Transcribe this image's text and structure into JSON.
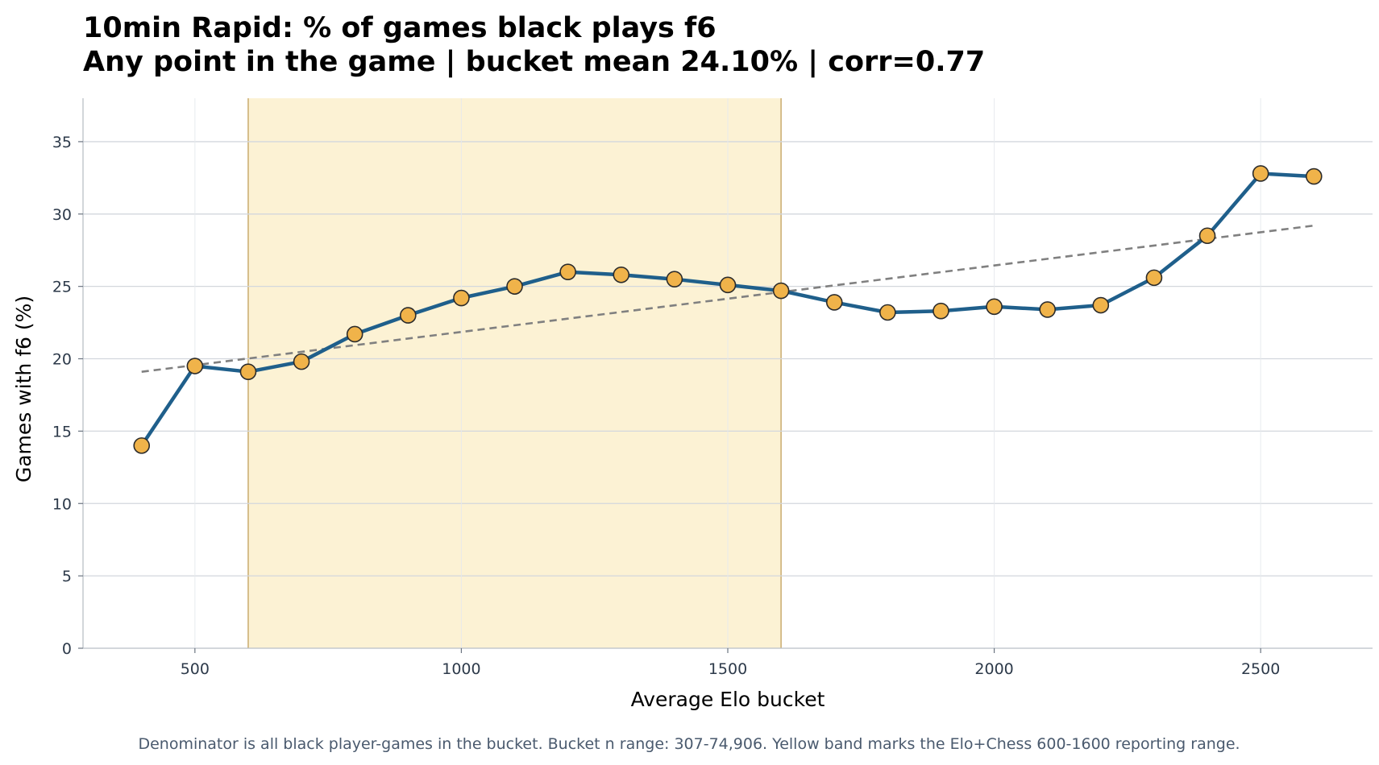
{
  "chart_data": {
    "type": "line",
    "title": "10min Rapid: % of games black plays f6",
    "subtitle": "Any point in the game | bucket mean 24.10% | corr=0.77",
    "xlabel": "Average Elo bucket",
    "ylabel": "Games with f6 (%)",
    "xlim": [
      290,
      2710
    ],
    "ylim": [
      0,
      38
    ],
    "xticks": [
      500,
      1000,
      1500,
      2000,
      2500
    ],
    "yticks": [
      0,
      5,
      10,
      15,
      20,
      25,
      30,
      35
    ],
    "grid": true,
    "highlight_band": {
      "x_start": 600,
      "x_end": 1600,
      "color": "#fcf2d4",
      "edge_color": "#c9ab6e"
    },
    "series": [
      {
        "x": [
          400,
          500,
          600,
          700,
          800,
          900,
          1000,
          1100,
          1200,
          1300,
          1400,
          1500,
          1600,
          1700,
          1800,
          1900,
          2000,
          2100,
          2200,
          2300,
          2400,
          2500,
          2600
        ],
        "values": [
          14.0,
          19.5,
          19.1,
          19.8,
          21.7,
          23.0,
          24.2,
          25.0,
          26.0,
          25.8,
          25.5,
          25.1,
          24.7,
          23.9,
          23.2,
          23.3,
          23.6,
          23.4,
          23.7,
          25.6,
          28.5,
          32.8,
          32.6
        ],
        "line_color": "#1f5f8b",
        "marker_color": "#f0b34a",
        "marker_edge": "#2b2b2b"
      }
    ],
    "trendline": {
      "x": [
        400,
        2600
      ],
      "y": [
        19.1,
        29.2
      ],
      "color": "#808080",
      "style": "dashed"
    },
    "footnote": "Denominator is all black player-games in the bucket. Bucket n range: 307-74,906. Yellow band marks the Elo+Chess 600-1600 reporting range."
  }
}
